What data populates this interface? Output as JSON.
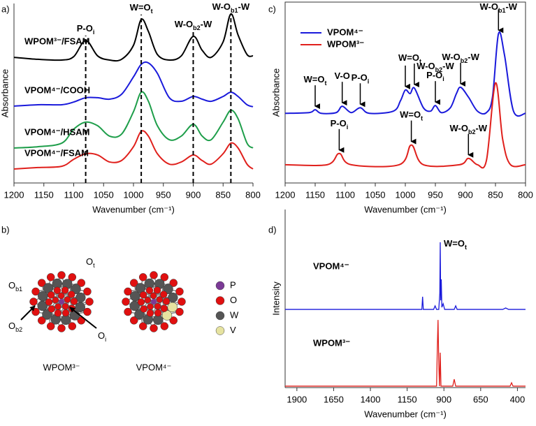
{
  "chart_data": [
    {
      "type": "line",
      "panel_label": "a)",
      "x_label": "Wavenumber (cm⁻¹)",
      "y_label": "Absorbance",
      "smooth": true,
      "xlim": [
        1200,
        800
      ],
      "xticks": [
        1200,
        1150,
        1100,
        1050,
        1000,
        950,
        900,
        850,
        800
      ],
      "ylim": [
        0,
        100
      ],
      "x": [
        1200,
        1160,
        1120,
        1100,
        1080,
        1060,
        1040,
        1020,
        1000,
        987,
        975,
        960,
        940,
        920,
        900,
        885,
        870,
        850,
        837,
        825,
        810,
        800
      ],
      "series": [
        {
          "name": "WPOM³⁻/FSAM",
          "color": "#000000",
          "values": [
            70.0,
            68.9,
            68.5,
            70.4,
            79.4,
            70.8,
            68.5,
            68.9,
            76.7,
            91.1,
            84.4,
            71.6,
            68.5,
            70.8,
            81.7,
            73.9,
            70.0,
            78.6,
            94.2,
            82.5,
            71.6,
            70.8
          ]
        },
        {
          "name": "VPOM⁴⁻/COOH",
          "color": "#1a1adb",
          "values": [
            42.8,
            43.6,
            43.6,
            45.1,
            47.5,
            47.5,
            46.7,
            49.4,
            59.1,
            66.1,
            66.9,
            61.1,
            47.5,
            45.5,
            48.2,
            46.7,
            45.5,
            48.2,
            50.6,
            48.2,
            43.6,
            42.5
          ]
        },
        {
          "name": "VPOM⁴⁻/HSAM",
          "color": "#1e9e4a",
          "values": [
            19.5,
            20.2,
            22.2,
            30.0,
            33.9,
            31.9,
            26.1,
            27.2,
            39.7,
            50.6,
            45.5,
            31.9,
            24.1,
            26.1,
            32.7,
            26.1,
            24.1,
            33.9,
            40.5,
            35.8,
            22.2,
            19.5
          ]
        },
        {
          "name": "VPOM⁴⁻/FSAM",
          "color": "#e0201c",
          "values": [
            7.8,
            8.6,
            9.3,
            13.2,
            16.3,
            15.6,
            11.7,
            12.5,
            20.2,
            28.8,
            26.1,
            16.3,
            10.5,
            11.7,
            15.6,
            12.5,
            10.5,
            16.3,
            22.2,
            19.5,
            10.5,
            7.8
          ]
        }
      ],
      "annotations": [
        {
          "x": 1080,
          "parts": [
            "P-O",
            "i"
          ]
        },
        {
          "x": 987,
          "parts": [
            "W=O",
            "t"
          ]
        },
        {
          "x": 900,
          "parts": [
            "W-O",
            "b2",
            "-W"
          ]
        },
        {
          "x": 837,
          "parts": [
            "W-O",
            "b1",
            "-W"
          ]
        }
      ]
    },
    {
      "type": "diagram",
      "panel_label": "b)",
      "labels": [
        {
          "parts": [
            "O",
            "t"
          ]
        },
        {
          "parts": [
            "O",
            "b1"
          ]
        },
        {
          "parts": [
            "O",
            "b2"
          ]
        },
        {
          "parts": [
            "O",
            "i"
          ]
        }
      ],
      "structures": [
        "WPOM³⁻",
        "VPOM⁴⁻"
      ],
      "atoms": [
        {
          "name": "P",
          "color": "#7b3a96"
        },
        {
          "name": "O",
          "color": "#e01010"
        },
        {
          "name": "W",
          "color": "#555555"
        },
        {
          "name": "V",
          "color": "#e6e3a0"
        }
      ]
    },
    {
      "type": "line",
      "panel_label": "c)",
      "x_label": "Wavenumber (cm⁻¹)",
      "y_label": "Absorbance",
      "smooth": true,
      "legend": "upper left",
      "xlim": [
        1200,
        800
      ],
      "xticks": [
        1200,
        1150,
        1100,
        1050,
        1000,
        950,
        900,
        850,
        800
      ],
      "ylim": [
        0,
        100
      ],
      "series": [
        {
          "name": "VPOM⁴⁻",
          "color": "#1a1adb",
          "x": [
            1200,
            1160,
            1150,
            1140,
            1115,
            1105,
            1090,
            1075,
            1060,
            1020,
            1008,
            1000,
            992,
            985,
            970,
            958,
            950,
            940,
            925,
            915,
            908,
            895,
            880,
            865,
            855,
            845,
            835,
            820,
            800
          ],
          "values": [
            38.5,
            38.9,
            40.5,
            38.5,
            38.9,
            42.4,
            38.9,
            41.6,
            38.5,
            39.7,
            45.5,
            51.4,
            49.4,
            52.5,
            41.6,
            39.7,
            42.8,
            38.9,
            41.6,
            49.4,
            52.9,
            47.5,
            39.7,
            38.9,
            47.5,
            82.5,
            70.8,
            39.7,
            38.5
          ],
          "annotations": [
            {
              "x": [
                1150
              ],
              "lines": [
                [
                  "W=O",
                  "t"
                ]
              ]
            },
            {
              "x": [
                1105
              ],
              "lines": [
                [
                  "V-O"
                ]
              ]
            },
            {
              "x": [
                1075
              ],
              "lines": [
                [
                  "P-O",
                  "i"
                ]
              ]
            },
            {
              "x": [
                1000,
                985
              ],
              "lines": [
                [
                  "W=O",
                  "t"
                ]
              ]
            },
            {
              "x": [
                950
              ],
              "lines": [
                [
                  "W-O",
                  "b2",
                  "-W"
                ],
                [
                  "P-O",
                  "i"
                ]
              ]
            },
            {
              "x": [
                908
              ],
              "lines": [
                [
                  "W-O",
                  "b2",
                  "-W"
                ]
              ]
            },
            {
              "x": [
                845
              ],
              "lines": [
                [
                  "W-O",
                  "b1",
                  "-W"
                ]
              ]
            }
          ]
        },
        {
          "name": "WPOM³⁻",
          "color": "#e0201c",
          "x": [
            1200,
            1130,
            1110,
            1090,
            1010,
            990,
            970,
            910,
            895,
            880,
            865,
            850,
            838,
            825,
            800
          ],
          "values": [
            10.1,
            10.1,
            16.3,
            10.1,
            10.1,
            21.0,
            10.1,
            10.1,
            13.6,
            10.1,
            12.5,
            55.3,
            24.1,
            10.1,
            10.1
          ],
          "annotations": [
            {
              "x": [
                1110
              ],
              "lines": [
                [
                  "P-O",
                  "i"
                ]
              ]
            },
            {
              "x": [
                990
              ],
              "lines": [
                [
                  "W=O",
                  "t"
                ]
              ]
            },
            {
              "x": [
                895
              ],
              "lines": [
                [
                  "W-O",
                  "b2",
                  "-W"
                ]
              ]
            }
          ]
        }
      ]
    },
    {
      "type": "line",
      "panel_label": "d)",
      "x_label": "Wavenumber (cm⁻¹)",
      "y_label": "Intensity",
      "smooth": false,
      "xlim": [
        1980,
        345
      ],
      "xticks": [
        1900,
        1650,
        1400,
        1150,
        900,
        650,
        400
      ],
      "ylim": [
        0,
        100
      ],
      "series": [
        {
          "name": "VPOM⁴⁻",
          "color": "#1a1adb",
          "x": [
            1980,
            1050,
            1045,
            1040,
            970,
            960,
            950,
            935,
            928,
            925,
            922,
            918,
            914,
            905,
            895,
            830,
            820,
            810,
            500,
            480,
            460,
            345
          ],
          "values": [
            43.9,
            43.9,
            51.0,
            43.9,
            43.9,
            45.9,
            43.9,
            43.9,
            52.9,
            81.6,
            49.0,
            60.8,
            45.1,
            47.1,
            43.9,
            43.9,
            45.9,
            43.9,
            43.9,
            44.7,
            43.9,
            43.9
          ]
        },
        {
          "name": "WPOM³⁻",
          "color": "#e0201c",
          "x": [
            1980,
            950,
            945,
            940,
            935,
            930,
            925,
            920,
            915,
            840,
            830,
            820,
            450,
            440,
            430,
            345
          ],
          "values": [
            0.8,
            0.8,
            21.6,
            38.0,
            13.7,
            0.8,
            19.6,
            0.8,
            0.8,
            0.8,
            4.7,
            0.8,
            0.8,
            2.7,
            0.8,
            0.8
          ]
        }
      ],
      "annotations": [
        {
          "x": 925,
          "parts": [
            "W=O",
            "t"
          ]
        }
      ]
    }
  ]
}
